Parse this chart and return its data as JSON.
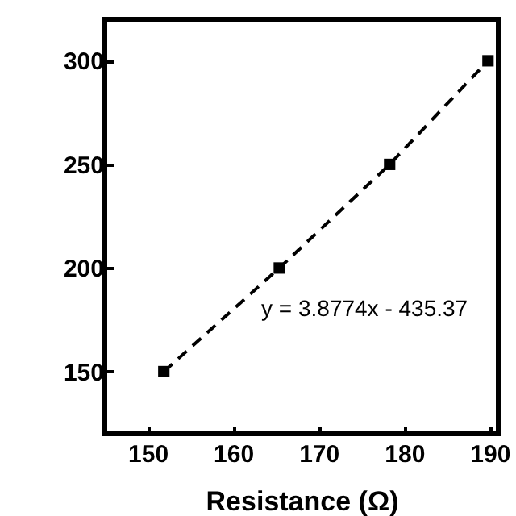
{
  "chart_data": {
    "type": "line",
    "xlabel": "Resistance (Ω)",
    "x": [
      151.9,
      165.4,
      178.3,
      189.8
    ],
    "series": [
      {
        "color": "#000000",
        "values": [
          150,
          200,
          250,
          300
        ]
      }
    ],
    "marker": "square",
    "line_style": "dashed",
    "xlim": [
      145,
      191
    ],
    "xticks": [
      150,
      160,
      170,
      180,
      190
    ],
    "ylim": [
      120,
      320
    ],
    "yticks": [
      150,
      200,
      250,
      300
    ],
    "grid": false,
    "annotations": [
      "y = 3.8774x - 435.37"
    ]
  }
}
